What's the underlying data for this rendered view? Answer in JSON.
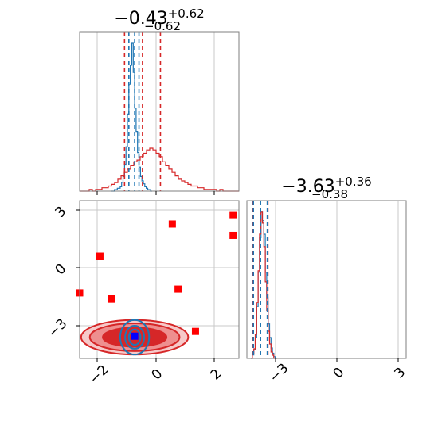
{
  "chart_data": [
    {
      "type": "histogram",
      "panel": "marginal-param1",
      "title": {
        "main": "−0.43",
        "sup": "+0.62",
        "sub": "−0.62"
      },
      "xlim": [
        -2.6,
        2.9
      ],
      "quantile_lines": {
        "red": [
          -1.05,
          -0.43,
          0.19
        ],
        "blue": [
          -0.9,
          -0.7,
          -0.55
        ]
      },
      "series": [
        {
          "color": "#1f77b4",
          "bin_start": -1.5,
          "bin_width": 0.05,
          "counts": [
            0,
            0,
            1,
            1,
            2,
            2,
            3,
            6,
            10,
            18,
            30,
            52,
            72,
            85,
            100,
            80,
            56,
            40,
            26,
            16,
            10,
            7,
            5,
            3,
            2,
            1,
            1,
            0
          ]
        },
        {
          "color": "#d62728",
          "bin_start": -2.6,
          "bin_width": 0.11,
          "counts": [
            0,
            0,
            0,
            1,
            0,
            1,
            1,
            2,
            2,
            3,
            4,
            5,
            7,
            9,
            11,
            13,
            15,
            17,
            18,
            20,
            22,
            24,
            25,
            24,
            22,
            20,
            17,
            15,
            13,
            11,
            9,
            7,
            6,
            5,
            4,
            3,
            3,
            2,
            2,
            1,
            1,
            1,
            1,
            0,
            1,
            0,
            0,
            0,
            0,
            0
          ]
        }
      ]
    },
    {
      "type": "histogram",
      "panel": "marginal-param2",
      "title": {
        "main": "−3.63",
        "sup": "+0.36",
        "sub": "−0.38"
      },
      "xlim": [
        -4.3,
        3.5
      ],
      "xticks": [
        -3,
        0,
        3
      ],
      "xtick_labels": [
        "−3",
        "0",
        "3"
      ],
      "quantile_lines": {
        "red": [
          -4.01,
          -3.63,
          -3.27
        ],
        "blue": [
          -3.98,
          -3.63,
          -3.3
        ]
      },
      "series": [
        {
          "color": "#1f77b4",
          "bin_start": -4.1,
          "bin_width": 0.07,
          "counts": [
            0,
            2,
            5,
            12,
            30,
            50,
            70,
            85,
            80,
            72,
            50,
            35,
            20,
            12,
            6,
            3,
            1,
            0
          ]
        },
        {
          "color": "#d62728",
          "bin_start": -4.1,
          "bin_width": 0.07,
          "counts": [
            0,
            3,
            6,
            15,
            35,
            55,
            78,
            92,
            85,
            70,
            48,
            30,
            17,
            9,
            4,
            2,
            0,
            0
          ]
        }
      ]
    },
    {
      "type": "scatter",
      "panel": "joint",
      "xlim": [
        -2.6,
        2.9
      ],
      "ylim": [
        -4.7,
        3.5
      ],
      "xticks": [
        -2,
        0,
        2
      ],
      "xtick_labels": [
        "−2",
        "0",
        "2"
      ],
      "yticks": [
        -3,
        0,
        3
      ],
      "ytick_labels": [
        "−3",
        "0",
        "3"
      ],
      "points": [
        {
          "x": 0.6,
          "y": 2.3,
          "color": "#ff0000"
        },
        {
          "x": 2.7,
          "y": 2.75,
          "color": "#ff0000"
        },
        {
          "x": 2.7,
          "y": 1.7,
          "color": "#ff0000"
        },
        {
          "x": -1.9,
          "y": 0.6,
          "color": "#ff0000"
        },
        {
          "x": 0.8,
          "y": -1.1,
          "color": "#ff0000"
        },
        {
          "x": -2.6,
          "y": -1.3,
          "color": "#ff0000"
        },
        {
          "x": -1.5,
          "y": -1.6,
          "color": "#ff0000"
        },
        {
          "x": 1.4,
          "y": -3.3,
          "color": "#ff0000"
        },
        {
          "x": -0.7,
          "y": -3.55,
          "color": "#0000ff"
        }
      ],
      "contours": {
        "center": [
          -0.7,
          -3.6
        ],
        "red_levels": [
          {
            "rx": 1.85,
            "ry": 0.9
          },
          {
            "rx": 1.55,
            "ry": 0.72
          },
          {
            "rx": 1.1,
            "ry": 0.5
          }
        ],
        "blue_levels": [
          {
            "rx": 0.5,
            "ry": 0.9
          },
          {
            "rx": 0.33,
            "ry": 0.6
          },
          {
            "rx": 0.2,
            "ry": 0.4
          }
        ]
      }
    }
  ]
}
